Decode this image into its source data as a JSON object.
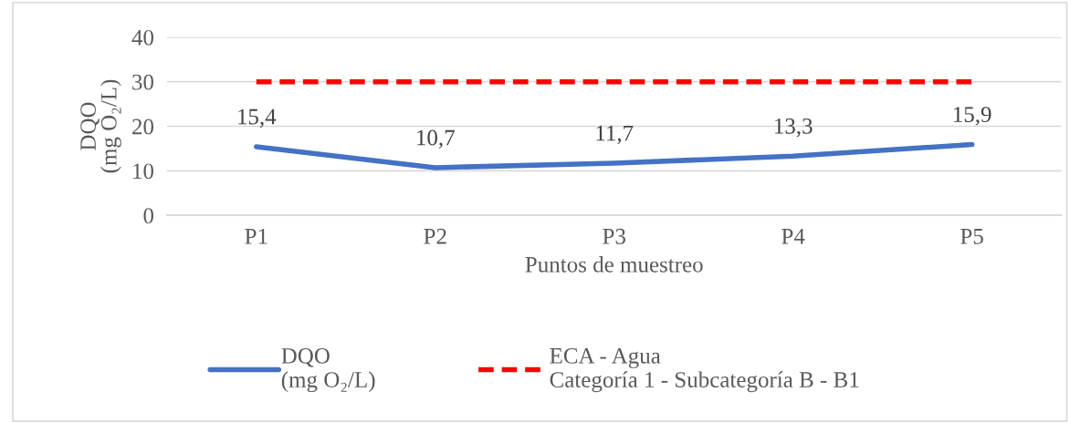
{
  "chart_data": {
    "type": "line",
    "xlabel": "Puntos de muestreo",
    "ylabel": "DQO\n(mg O₂/L)",
    "categories": [
      "P1",
      "P2",
      "P3",
      "P4",
      "P5"
    ],
    "series": [
      {
        "name": "DQO\n(mg O₂/L)",
        "color": "#4472c4",
        "values": [
          15.4,
          10.7,
          11.7,
          13.3,
          15.9
        ],
        "value_labels": [
          "15,4",
          "10,7",
          "11,7",
          "13,3",
          "15,9"
        ],
        "line_style": "solid"
      },
      {
        "name": "ECA - Agua\nCategoría 1 - Subcategoría B - B1",
        "color": "#ff0000",
        "values": [
          30,
          30,
          30,
          30,
          30
        ],
        "line_style": "dashed"
      }
    ],
    "ylim": [
      0,
      40
    ],
    "yticks": [
      0,
      10,
      20,
      30,
      40
    ],
    "grid": "y",
    "legend": "bottom"
  }
}
